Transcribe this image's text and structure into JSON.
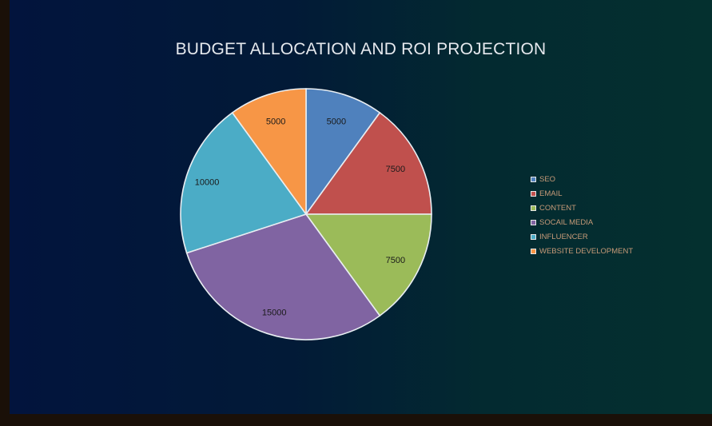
{
  "chart_data": {
    "type": "pie",
    "title": "BUDGET ALLOCATION AND ROI PROJECTION",
    "categories": [
      "SEO",
      "EMAIL",
      "CONTENT",
      "SOCAIL MEDIA",
      "INFLUENCER",
      "WEBSITE DEVELOPMENT"
    ],
    "values": [
      5000,
      7500,
      7500,
      15000,
      10000,
      5000
    ],
    "data_labels": [
      "5000",
      "7500",
      "7500",
      "15000",
      "10000",
      "5000"
    ],
    "colors": [
      "#4f81bd",
      "#c0504d",
      "#9bbb59",
      "#8064a2",
      "#4bacc6",
      "#f79646"
    ],
    "legend_position": "right",
    "start_angle": "top, clockwise"
  }
}
